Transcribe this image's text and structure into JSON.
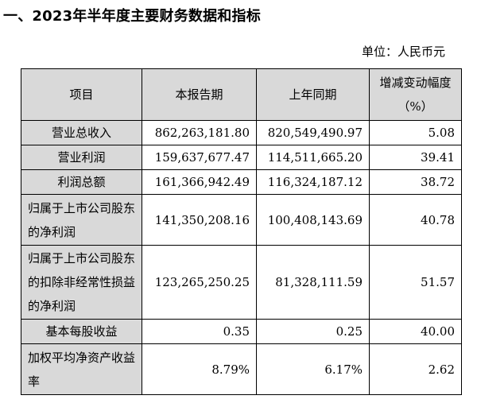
{
  "section_title": "一、2023年半年度主要财务数据和指标",
  "unit_label": "单位：人民币元",
  "table": {
    "headers": {
      "item": "项目",
      "current": "本报告期",
      "prior": "上年同期",
      "change_line1": "增减变动幅度",
      "change_line2": "（%）"
    },
    "rows": [
      {
        "label": "营业总收入",
        "current": "862,263,181.80",
        "prior": "820,549,490.97",
        "change": "5.08"
      },
      {
        "label": "营业利润",
        "current": "159,637,677.47",
        "prior": "114,511,665.20",
        "change": "39.41"
      },
      {
        "label": "利润总额",
        "current": "161,366,942.49",
        "prior": "116,324,187.12",
        "change": "38.72"
      },
      {
        "label": "归属于上市公司股东的净利润",
        "current": "141,350,208.16",
        "prior": "100,408,143.69",
        "change": "40.78"
      },
      {
        "label": "归属于上市公司股东的扣除非经常性损益的净利润",
        "current": "123,265,250.25",
        "prior": "81,328,111.59",
        "change": "51.57"
      },
      {
        "label": "基本每股收益",
        "current": "0.35",
        "prior": "0.25",
        "change": "40.00"
      },
      {
        "label": "加权平均净资产收益率",
        "current": "8.79%",
        "prior": "6.17%",
        "change": "2.62"
      }
    ]
  }
}
